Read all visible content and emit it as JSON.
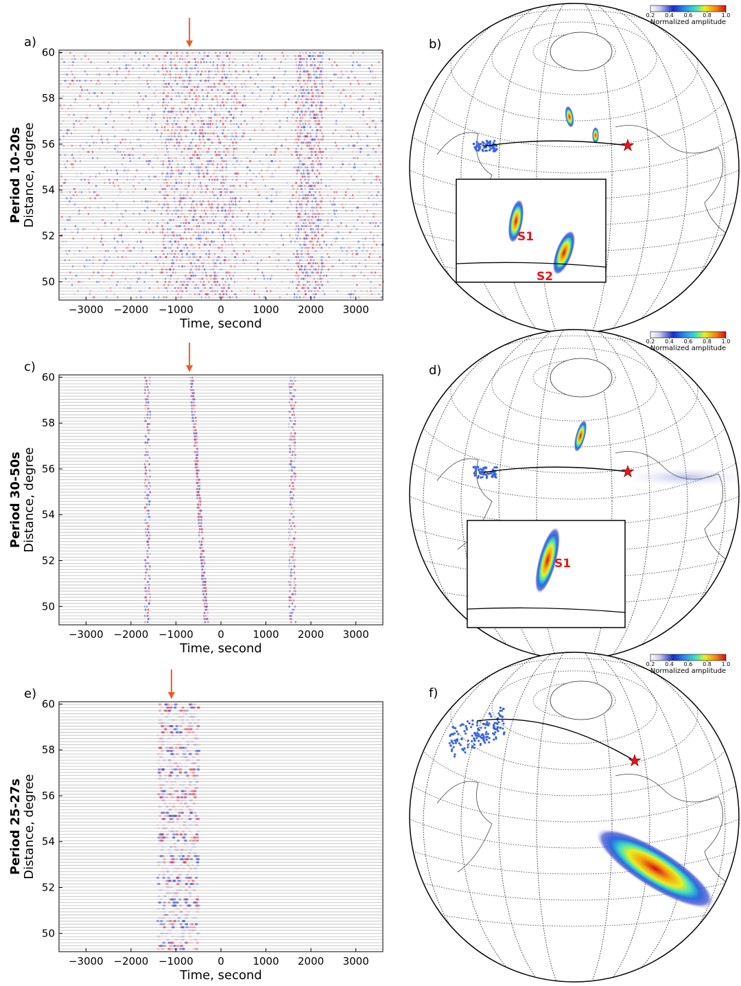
{
  "chart_data": [
    {
      "type": "wiggle",
      "panel_label": "a)",
      "title": "Period 10-20s",
      "xlabel": "Time, second",
      "ylabel": "Distance, degree",
      "xlim": [
        -3600,
        3600
      ],
      "ylim": [
        49.2,
        60.1
      ],
      "xticks": [
        {
          "value": -3000,
          "label": "−3000"
        },
        {
          "value": -2000,
          "label": "−2000"
        },
        {
          "value": -1000,
          "label": "−1000"
        },
        0,
        1000,
        2000,
        3000
      ],
      "yticks": [
        50,
        52,
        54,
        56,
        58,
        60
      ],
      "arrow_time": -700,
      "arrow_color": "#f05a28"
    },
    {
      "type": "wiggle",
      "panel_label": "c)",
      "title": "Period 30-50s",
      "xlabel": "Time, second",
      "ylabel": "Distance, degree",
      "xlim": [
        -3600,
        3600
      ],
      "ylim": [
        49.2,
        60.1
      ],
      "xticks": [
        {
          "value": -3000,
          "label": "−3000"
        },
        {
          "value": -2000,
          "label": "−2000"
        },
        {
          "value": -1000,
          "label": "−1000"
        },
        0,
        1000,
        2000,
        3000
      ],
      "yticks": [
        50,
        52,
        54,
        56,
        58,
        60
      ],
      "arrow_time": -700,
      "arrow_color": "#f05a28"
    },
    {
      "type": "wiggle",
      "panel_label": "e)",
      "title": "Period 25-27s",
      "xlabel": "Time, second",
      "ylabel": "Distance, degree",
      "xlim": [
        -3600,
        3600
      ],
      "ylim": [
        49.2,
        60.1
      ],
      "xticks": [
        {
          "value": -3000,
          "label": "−3000"
        },
        {
          "value": -2000,
          "label": "−2000"
        },
        {
          "value": -1000,
          "label": "−1000"
        },
        0,
        1000,
        2000,
        3000
      ],
      "yticks": [
        50,
        52,
        54,
        56,
        58,
        60
      ],
      "arrow_time": -1100,
      "arrow_color": "#f05a28"
    }
  ],
  "maps": [
    {
      "panel_label": "b)",
      "colorbar": {
        "label": "Normalized amplitude",
        "lim": [
          0.2,
          1.0
        ],
        "ticks": [
          0.2,
          0.4,
          0.6,
          0.8,
          {
            "value": 1,
            "label": "1.0"
          }
        ]
      },
      "sources": [
        "S1",
        "S2"
      ]
    },
    {
      "panel_label": "d)",
      "colorbar": {
        "label": "Normalized amplitude",
        "lim": [
          0.2,
          1.0
        ],
        "ticks": [
          0.2,
          0.4,
          0.6,
          0.8,
          {
            "value": 1,
            "label": "1.0"
          }
        ]
      },
      "sources": [
        "S1"
      ]
    },
    {
      "panel_label": "f)",
      "colorbar": {
        "label": "Normalized amplitude",
        "lim": [
          0.2,
          1.0
        ],
        "ticks": [
          0.2,
          0.4,
          0.6,
          0.8,
          {
            "value": 1,
            "label": "1.0"
          }
        ]
      },
      "sources": []
    }
  ]
}
